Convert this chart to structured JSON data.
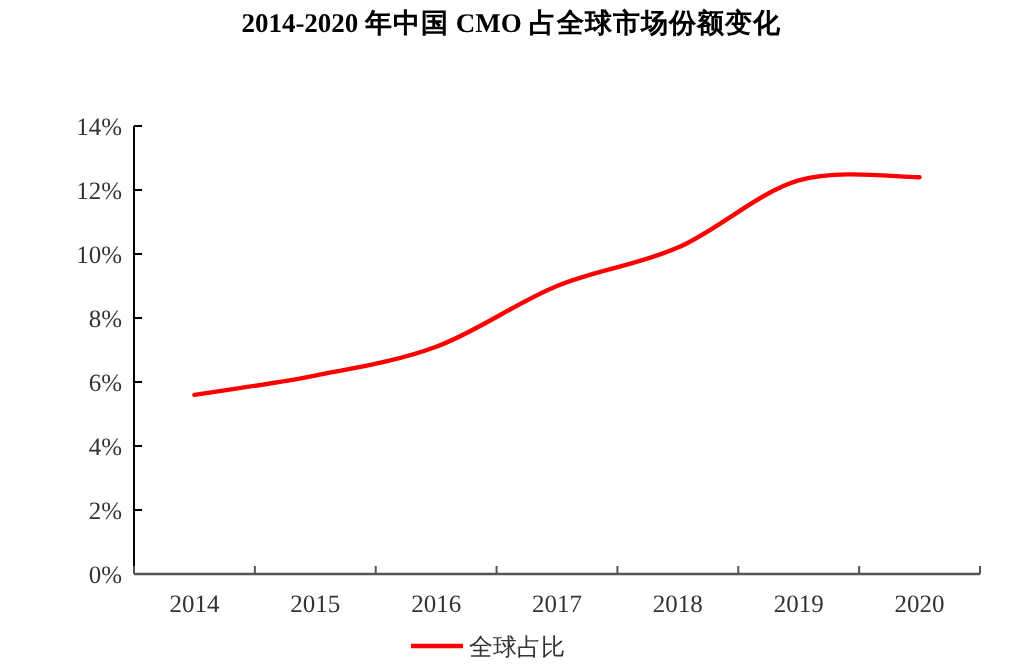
{
  "chart_data": {
    "type": "line",
    "title": "2014-2020 年中国 CMO 占全球市场份额变化",
    "categories": [
      "2014",
      "2015",
      "2016",
      "2017",
      "2018",
      "2019",
      "2020"
    ],
    "series": [
      {
        "name": "全球占比",
        "color": "#ff0000",
        "values": [
          5.6,
          6.2,
          7.1,
          9.0,
          10.2,
          12.3,
          12.4
        ]
      }
    ],
    "ylim": [
      0,
      14
    ],
    "yticks": [
      {
        "value": 0,
        "label": "0%"
      },
      {
        "value": 2,
        "label": "2%"
      },
      {
        "value": 4,
        "label": "4%"
      },
      {
        "value": 6,
        "label": "6%"
      },
      {
        "value": 8,
        "label": "8%"
      },
      {
        "value": 10,
        "label": "10%"
      },
      {
        "value": 12,
        "label": "12%"
      },
      {
        "value": 14,
        "label": "14%"
      }
    ],
    "legend": "bottom"
  }
}
